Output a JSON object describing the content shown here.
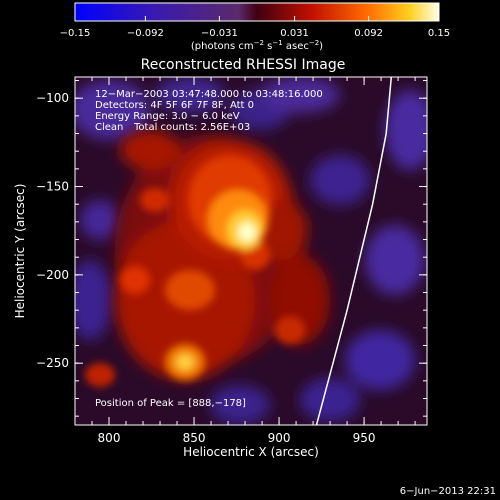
{
  "colorbar": {
    "ticks": [
      {
        "value": -0.15,
        "label": "−0.15"
      },
      {
        "value": -0.092,
        "label": "−0.092"
      },
      {
        "value": -0.031,
        "label": "−0.031"
      },
      {
        "value": 0.031,
        "label": "0.031"
      },
      {
        "value": 0.092,
        "label": "0.092"
      },
      {
        "value": 0.15,
        "label": "0.15"
      }
    ],
    "range": [
      -0.15,
      0.15
    ],
    "units_prefix": "(photons cm",
    "units_exp1": "−2",
    "units_mid1": " s",
    "units_exp2": "−1",
    "units_mid2": " asec",
    "units_exp3": "−2",
    "units_suffix": ")"
  },
  "title": "Reconstructed RHESSI Image",
  "annotations": {
    "time_range": "12−Mar−2003 03:47:48.000 to 03:48:16.000",
    "detectors": "Detectors: 4F 5F 6F 7F 8F, Att 0",
    "energy": "Energy Range: 3.0 − 6.0 keV",
    "clean_label": "Clean",
    "total_counts": "Total counts: 2.56E+03",
    "peak_position": "Position of Peak = [888,−178]"
  },
  "axes": {
    "xlabel": "Heliocentric X (arcsec)",
    "ylabel": "Heliocentric Y (arcsec)",
    "xrange": [
      780,
      987
    ],
    "yrange": [
      -285,
      -88
    ],
    "x_ticks": [
      {
        "value": 800,
        "label": "800"
      },
      {
        "value": 850,
        "label": "850"
      },
      {
        "value": 900,
        "label": "900"
      },
      {
        "value": 950,
        "label": "950"
      }
    ],
    "y_ticks": [
      {
        "value": -100,
        "label": "−100"
      },
      {
        "value": -150,
        "label": "−150"
      },
      {
        "value": -200,
        "label": "−200"
      },
      {
        "value": -250,
        "label": "−250"
      }
    ]
  },
  "peak": {
    "x": 888,
    "y": -178
  },
  "limb_curve": [
    [
      922,
      -285
    ],
    [
      940,
      -220
    ],
    [
      955,
      -160
    ],
    [
      963,
      -120
    ],
    [
      966,
      -88
    ]
  ],
  "footer": {
    "date": "6−Jun−2013 22:31"
  }
}
